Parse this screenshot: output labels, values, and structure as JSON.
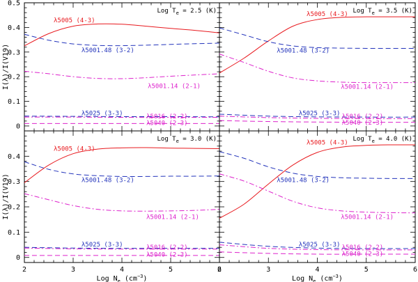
{
  "chart_data": [
    {
      "type": "line",
      "title": "Log T_e = 2.5 (K)",
      "title_prefix": "Log T",
      "title_sub": "e",
      "title_suffix": " = 2.5 (K)",
      "xlim": [
        2,
        6
      ],
      "ylim": [
        -0.02,
        0.5
      ],
      "series": [
        {
          "name": "λ5005 (4-3)",
          "color": "#e8191e",
          "dash": "solid",
          "x": [
            2,
            2.5,
            3,
            3.5,
            4,
            4.5,
            5,
            5.5,
            6
          ],
          "y": [
            0.325,
            0.375,
            0.405,
            0.414,
            0.413,
            0.405,
            0.396,
            0.388,
            0.378
          ]
        },
        {
          "name": "λ5001.48 (3-2)",
          "color": "#2233bb",
          "dash": "dash",
          "x": [
            2,
            2.5,
            3,
            3.5,
            4,
            4.5,
            5,
            5.5,
            6
          ],
          "y": [
            0.372,
            0.348,
            0.333,
            0.327,
            0.326,
            0.328,
            0.331,
            0.334,
            0.336
          ]
        },
        {
          "name": "λ5001.14 (2-1)",
          "color": "#dd22cc",
          "dash": "dashdot",
          "x": [
            2,
            2.5,
            3,
            3.5,
            4,
            4.5,
            5,
            5.5,
            6
          ],
          "y": [
            0.222,
            0.212,
            0.2,
            0.193,
            0.192,
            0.196,
            0.202,
            0.207,
            0.212
          ]
        },
        {
          "name": "λ5025 (3-3)",
          "color": "#2233bb",
          "dash": "dash",
          "x": [
            2,
            3,
            4,
            5,
            6
          ],
          "y": [
            0.04,
            0.039,
            0.038,
            0.038,
            0.037
          ]
        },
        {
          "name": "λ5016 (2-2)",
          "color": "#dd22cc",
          "dash": "dashdot",
          "x": [
            2,
            3,
            4,
            5,
            6
          ],
          "y": [
            0.036,
            0.036,
            0.035,
            0.035,
            0.035
          ]
        },
        {
          "name": "λ5040 (2-3)",
          "color": "#dd22cc",
          "dash": "dash",
          "x": [
            2,
            3,
            4,
            5,
            6
          ],
          "y": [
            0.01,
            0.01,
            0.01,
            0.01,
            0.01
          ]
        }
      ],
      "labels": [
        {
          "text": "λ5005 (4-3)",
          "color": "#e8191e",
          "x": 2.6,
          "y": 0.43
        },
        {
          "text": "λ5001.48 (3-2)",
          "color": "#2233bb",
          "x": 3.17,
          "y": 0.308
        },
        {
          "text": "λ5001.14 (2-1)",
          "color": "#dd22cc",
          "x": 4.53,
          "y": 0.162
        },
        {
          "text": "λ5025 (3-3)",
          "color": "#2233bb",
          "x": 3.17,
          "y": 0.052
        },
        {
          "text": "λ5016 (2-2)",
          "color": "#dd22cc",
          "x": 4.5,
          "y": 0.04
        },
        {
          "text": "λ5040 (2-3)",
          "color": "#dd22cc",
          "x": 4.5,
          "y": 0.013
        }
      ]
    },
    {
      "type": "line",
      "title": "Log T_e = 3.5 (K)",
      "title_prefix": "Log T",
      "title_sub": "e",
      "title_suffix": " = 3.5 (K)",
      "xlim": [
        2,
        6
      ],
      "ylim": [
        -0.02,
        0.5
      ],
      "series": [
        {
          "name": "λ5005 (4-3)",
          "color": "#e8191e",
          "dash": "solid",
          "x": [
            2,
            2.5,
            3,
            3.5,
            4,
            4.5,
            5,
            5.5,
            6
          ],
          "y": [
            0.215,
            0.275,
            0.345,
            0.405,
            0.432,
            0.441,
            0.443,
            0.443,
            0.443
          ]
        },
        {
          "name": "λ5001.48 (3-2)",
          "color": "#2233bb",
          "dash": "dash",
          "x": [
            2,
            2.5,
            3,
            3.5,
            4,
            4.5,
            5,
            5.5,
            6
          ],
          "y": [
            0.398,
            0.37,
            0.342,
            0.325,
            0.318,
            0.316,
            0.315,
            0.315,
            0.315
          ]
        },
        {
          "name": "λ5001.14 (2-1)",
          "color": "#dd22cc",
          "dash": "dashdot",
          "x": [
            2,
            2.5,
            3,
            3.5,
            4,
            4.5,
            5,
            5.5,
            6
          ],
          "y": [
            0.292,
            0.258,
            0.222,
            0.195,
            0.183,
            0.178,
            0.176,
            0.176,
            0.176
          ]
        },
        {
          "name": "λ5025 (3-3)",
          "color": "#2233bb",
          "dash": "dash",
          "x": [
            2,
            3,
            4,
            5,
            6
          ],
          "y": [
            0.048,
            0.04,
            0.037,
            0.036,
            0.036
          ]
        },
        {
          "name": "λ5016 (2-2)",
          "color": "#dd22cc",
          "dash": "dashdot",
          "x": [
            2,
            3,
            4,
            5,
            6
          ],
          "y": [
            0.04,
            0.034,
            0.031,
            0.03,
            0.03
          ]
        },
        {
          "name": "λ5040 (2-3)",
          "color": "#dd22cc",
          "dash": "dash",
          "x": [
            2,
            3,
            4,
            5,
            6
          ],
          "y": [
            0.022,
            0.018,
            0.016,
            0.015,
            0.015
          ]
        }
      ],
      "labels": [
        {
          "text": "λ5005 (4-3)",
          "color": "#e8191e",
          "x": 3.78,
          "y": 0.455
        },
        {
          "text": "λ5001.48 (3-2)",
          "color": "#2233bb",
          "x": 3.17,
          "y": 0.306
        },
        {
          "text": "λ5001.14 (2-1)",
          "color": "#dd22cc",
          "x": 4.48,
          "y": 0.16
        },
        {
          "text": "λ5025 (3-3)",
          "color": "#2233bb",
          "x": 3.62,
          "y": 0.052
        },
        {
          "text": "λ5016 (2-2)",
          "color": "#dd22cc",
          "x": 4.5,
          "y": 0.04
        },
        {
          "text": "λ5040 (2-3)",
          "color": "#dd22cc",
          "x": 4.5,
          "y": 0.014
        }
      ]
    },
    {
      "type": "line",
      "title": "Log T_e = 3.0 (K)",
      "title_prefix": "Log T",
      "title_sub": "e",
      "title_suffix": " = 3.0 (K)",
      "xlim": [
        2,
        6
      ],
      "ylim": [
        -0.02,
        0.5
      ],
      "xlabel_prefix": "Log N",
      "xlabel_sub": "e",
      "xlabel_suffix": " (cm",
      "xlabel_sup": "−3",
      "xlabel_end": ")",
      "series": [
        {
          "name": "λ5005 (4-3)",
          "color": "#e8191e",
          "dash": "solid",
          "x": [
            2,
            2.5,
            3,
            3.5,
            4,
            4.5,
            5,
            5.5,
            6
          ],
          "y": [
            0.295,
            0.365,
            0.41,
            0.428,
            0.433,
            0.434,
            0.432,
            0.431,
            0.43
          ]
        },
        {
          "name": "λ5001.48 (3-2)",
          "color": "#2233bb",
          "dash": "dash",
          "x": [
            2,
            2.5,
            3,
            3.5,
            4,
            4.5,
            5,
            5.5,
            6
          ],
          "y": [
            0.378,
            0.348,
            0.33,
            0.323,
            0.32,
            0.32,
            0.321,
            0.321,
            0.322
          ]
        },
        {
          "name": "λ5001.14 (2-1)",
          "color": "#dd22cc",
          "dash": "dashdot",
          "x": [
            2,
            2.5,
            3,
            3.5,
            4,
            4.5,
            5,
            5.5,
            6
          ],
          "y": [
            0.252,
            0.228,
            0.205,
            0.19,
            0.184,
            0.183,
            0.184,
            0.186,
            0.19
          ]
        },
        {
          "name": "λ5025 (3-3)",
          "color": "#2233bb",
          "dash": "dash",
          "x": [
            2,
            3,
            4,
            5,
            6
          ],
          "y": [
            0.04,
            0.037,
            0.036,
            0.036,
            0.036
          ]
        },
        {
          "name": "λ5016 (2-2)",
          "color": "#dd22cc",
          "dash": "dashdot",
          "x": [
            2,
            3,
            4,
            5,
            6
          ],
          "y": [
            0.037,
            0.034,
            0.033,
            0.033,
            0.033
          ]
        },
        {
          "name": "λ5040 (2-3)",
          "color": "#dd22cc",
          "dash": "dash",
          "x": [
            2,
            3,
            4,
            5,
            6
          ],
          "y": [
            0.008,
            0.008,
            0.008,
            0.008,
            0.008
          ]
        }
      ],
      "labels": [
        {
          "text": "λ5005 (4-3)",
          "color": "#e8191e",
          "x": 2.6,
          "y": 0.43
        },
        {
          "text": "λ5001.48 (3-2)",
          "color": "#2233bb",
          "x": 3.17,
          "y": 0.306
        },
        {
          "text": "λ5001.14 (2-1)",
          "color": "#dd22cc",
          "x": 4.5,
          "y": 0.16
        },
        {
          "text": "λ5025 (3-3)",
          "color": "#2233bb",
          "x": 3.17,
          "y": 0.052
        },
        {
          "text": "λ5016 (2-2)",
          "color": "#dd22cc",
          "x": 4.5,
          "y": 0.04
        },
        {
          "text": "λ5040 (2-3)",
          "color": "#dd22cc",
          "x": 4.5,
          "y": 0.012
        }
      ]
    },
    {
      "type": "line",
      "title": "Log T_e = 4.0 (K)",
      "title_prefix": "Log T",
      "title_sub": "e",
      "title_suffix": " = 4.0 (K)",
      "xlim": [
        2,
        6
      ],
      "ylim": [
        -0.02,
        0.5
      ],
      "xlabel_prefix": "Log N",
      "xlabel_sub": "e",
      "xlabel_suffix": " (cm",
      "xlabel_sup": "−3",
      "xlabel_end": ")",
      "series": [
        {
          "name": "λ5005 (4-3)",
          "color": "#e8191e",
          "dash": "solid",
          "x": [
            2,
            2.5,
            3,
            3.5,
            4,
            4.5,
            5,
            5.5,
            6
          ],
          "y": [
            0.155,
            0.21,
            0.29,
            0.365,
            0.415,
            0.436,
            0.443,
            0.445,
            0.445
          ]
        },
        {
          "name": "λ5001.48 (3-2)",
          "color": "#2233bb",
          "dash": "dash",
          "x": [
            2,
            2.5,
            3,
            3.5,
            4,
            4.5,
            5,
            5.5,
            6
          ],
          "y": [
            0.418,
            0.392,
            0.358,
            0.333,
            0.32,
            0.315,
            0.313,
            0.312,
            0.312
          ]
        },
        {
          "name": "λ5001.14 (2-1)",
          "color": "#dd22cc",
          "dash": "dashdot",
          "x": [
            2,
            2.5,
            3,
            3.5,
            4,
            4.5,
            5,
            5.5,
            6
          ],
          "y": [
            0.33,
            0.302,
            0.262,
            0.222,
            0.196,
            0.184,
            0.179,
            0.177,
            0.176
          ]
        },
        {
          "name": "λ5025 (3-3)",
          "color": "#2233bb",
          "dash": "dash",
          "x": [
            2,
            3,
            4,
            5,
            6
          ],
          "y": [
            0.06,
            0.044,
            0.037,
            0.035,
            0.035
          ]
        },
        {
          "name": "λ5016 (2-2)",
          "color": "#dd22cc",
          "dash": "dashdot",
          "x": [
            2,
            3,
            4,
            5,
            6
          ],
          "y": [
            0.05,
            0.036,
            0.031,
            0.03,
            0.03
          ]
        },
        {
          "name": "λ5040 (2-3)",
          "color": "#dd22cc",
          "dash": "dash",
          "x": [
            2,
            3,
            4,
            5,
            6
          ],
          "y": [
            0.022,
            0.016,
            0.013,
            0.013,
            0.013
          ]
        }
      ],
      "labels": [
        {
          "text": "λ5005 (4-3)",
          "color": "#e8191e",
          "x": 3.78,
          "y": 0.455
        },
        {
          "text": "λ5001.48 (3-2)",
          "color": "#2233bb",
          "x": 3.17,
          "y": 0.306
        },
        {
          "text": "λ5001.14 (2-1)",
          "color": "#dd22cc",
          "x": 4.48,
          "y": 0.16
        },
        {
          "text": "λ5025 (3-3)",
          "color": "#2233bb",
          "x": 3.62,
          "y": 0.052
        },
        {
          "text": "λ5016 (2-2)",
          "color": "#dd22cc",
          "x": 4.5,
          "y": 0.04
        },
        {
          "text": "λ5040 (2-3)",
          "color": "#dd22cc",
          "x": 4.5,
          "y": 0.014
        }
      ]
    }
  ],
  "axes": {
    "ylabel": "I(λ)/I(V19)",
    "xticks": [
      2,
      3,
      4,
      5,
      6
    ],
    "xtick_labels": [
      "2",
      "3",
      "4",
      "5",
      "6"
    ],
    "yticks": [
      0,
      0.1,
      0.2,
      0.3,
      0.4,
      0.5
    ],
    "ytick_labels": [
      "0",
      "0.1",
      "0.2",
      "0.3",
      "0.4",
      "0.5"
    ],
    "ytick_labels_lower": [
      "0",
      "0.1",
      "0.2",
      "0.3",
      "0.4"
    ]
  }
}
